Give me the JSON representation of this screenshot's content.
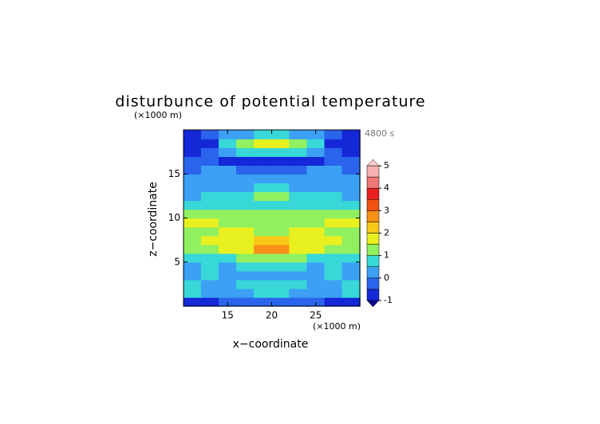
{
  "chart_data": {
    "type": "contour",
    "title": "disturbunce of potential temperature",
    "y_unit": "(×1000 m)",
    "x_unit": "(×1000 m)",
    "time_label": "4800 s",
    "xlabel": "x−coordinate",
    "ylabel": "z−coordinate",
    "xlim": [
      10,
      30
    ],
    "ylim": [
      0,
      20
    ],
    "xticks": [
      15,
      20,
      25
    ],
    "yticks": [
      5,
      10,
      15
    ],
    "levels": [
      -1,
      -0.5,
      0,
      0.5,
      1,
      1.5,
      2,
      2.5,
      3,
      3.5,
      4,
      4.5,
      5
    ],
    "colors": [
      "#1428d8",
      "#2a64ec",
      "#3ca0f4",
      "#38d8d8",
      "#90f060",
      "#e8f020",
      "#f8c818",
      "#f89018",
      "#f05010",
      "#e82020",
      "#f07878",
      "#f8b0b0"
    ],
    "under_color": "#0c0c90",
    "over_color": "#fcd0d0",
    "colorbar_ticks": [
      -1,
      0,
      1,
      2,
      3,
      4,
      5
    ],
    "z": [
      [
        -0.7,
        -0.6,
        -0.5,
        -0.4,
        -0.3,
        -0.3,
        -0.4,
        -0.5,
        -0.6,
        -0.7
      ],
      [
        0.6,
        0.3,
        0.2,
        0.4,
        0.7,
        0.7,
        0.4,
        0.2,
        0.3,
        0.6
      ],
      [
        0.7,
        0.4,
        0.3,
        0.5,
        0.8,
        0.8,
        0.5,
        0.3,
        0.4,
        0.7
      ],
      [
        0.2,
        0.6,
        0.3,
        0.2,
        0.4,
        0.4,
        0.2,
        0.3,
        0.6,
        0.2
      ],
      [
        0.3,
        0.7,
        0.4,
        0.5,
        0.6,
        0.6,
        0.5,
        0.4,
        0.7,
        0.3
      ],
      [
        0.6,
        0.5,
        0.9,
        1.1,
        1.3,
        1.3,
        1.1,
        0.9,
        0.5,
        0.6
      ],
      [
        1.1,
        1.4,
        1.7,
        1.9,
        2.6,
        2.6,
        1.9,
        1.7,
        1.4,
        1.1
      ],
      [
        1.3,
        1.7,
        1.9,
        1.6,
        2.2,
        2.2,
        1.6,
        1.9,
        1.7,
        1.3
      ],
      [
        1.0,
        1.3,
        1.5,
        1.6,
        1.4,
        1.4,
        1.6,
        1.5,
        1.3,
        1.0
      ],
      [
        1.6,
        1.7,
        1.4,
        1.2,
        1.3,
        1.3,
        1.2,
        1.4,
        1.7,
        1.6
      ],
      [
        1.2,
        1.0,
        1.3,
        1.4,
        1.1,
        1.1,
        1.4,
        1.3,
        1.0,
        1.2
      ],
      [
        0.6,
        0.7,
        0.9,
        0.7,
        0.8,
        0.8,
        0.7,
        0.9,
        0.7,
        0.6
      ],
      [
        0.4,
        0.5,
        0.6,
        0.8,
        1.1,
        1.1,
        0.8,
        0.6,
        0.5,
        0.4
      ],
      [
        0.3,
        0.3,
        0.4,
        0.4,
        0.6,
        0.6,
        0.4,
        0.4,
        0.3,
        0.3
      ],
      [
        0.2,
        0.2,
        0.3,
        0.3,
        0.3,
        0.3,
        0.3,
        0.3,
        0.2,
        0.2
      ],
      [
        -0.2,
        0.1,
        0.0,
        -0.1,
        -0.2,
        -0.2,
        -0.1,
        0.0,
        0.1,
        -0.2
      ],
      [
        -0.5,
        -0.4,
        -0.7,
        -0.8,
        -0.9,
        -0.9,
        -0.8,
        -0.7,
        -0.4,
        -0.5
      ],
      [
        -0.7,
        -0.3,
        0.3,
        0.5,
        0.6,
        0.6,
        0.5,
        0.3,
        -0.3,
        -0.7
      ],
      [
        -0.8,
        -0.6,
        0.6,
        1.1,
        1.8,
        1.8,
        1.1,
        0.6,
        -0.6,
        -0.8
      ],
      [
        -0.6,
        -0.4,
        0.1,
        0.4,
        0.6,
        0.6,
        0.4,
        0.1,
        -0.4,
        -0.6
      ]
    ]
  }
}
